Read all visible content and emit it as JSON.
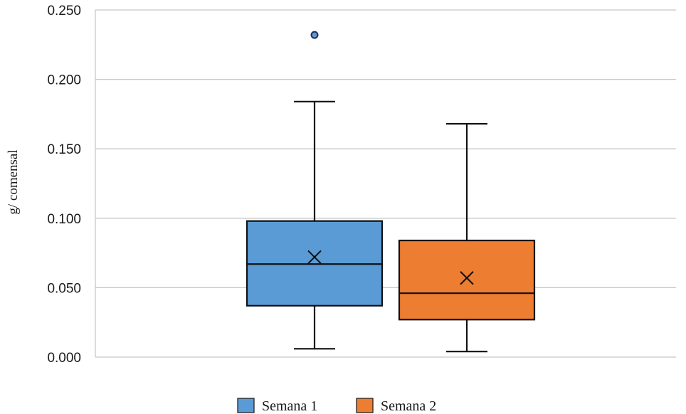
{
  "chart_data": {
    "type": "boxplot",
    "ylabel": "g/ comensal",
    "xlabel": "",
    "ylim": [
      0,
      0.25
    ],
    "ytick_step": 0.05,
    "ytick_labels": [
      "0.000",
      "0.050",
      "0.100",
      "0.150",
      "0.200",
      "0.250"
    ],
    "grid": true,
    "legend_position": "bottom-center",
    "series": [
      {
        "name": "Semana 1",
        "color": "#5b9bd5",
        "whisker_low": 0.006,
        "q1": 0.037,
        "median": 0.067,
        "q3": 0.098,
        "whisker_high": 0.184,
        "mean": 0.072,
        "outliers": [
          0.232
        ]
      },
      {
        "name": "Semana 2",
        "color": "#ed7d31",
        "whisker_low": 0.004,
        "q1": 0.027,
        "median": 0.046,
        "q3": 0.084,
        "whisker_high": 0.168,
        "mean": 0.057,
        "outliers": []
      }
    ]
  }
}
